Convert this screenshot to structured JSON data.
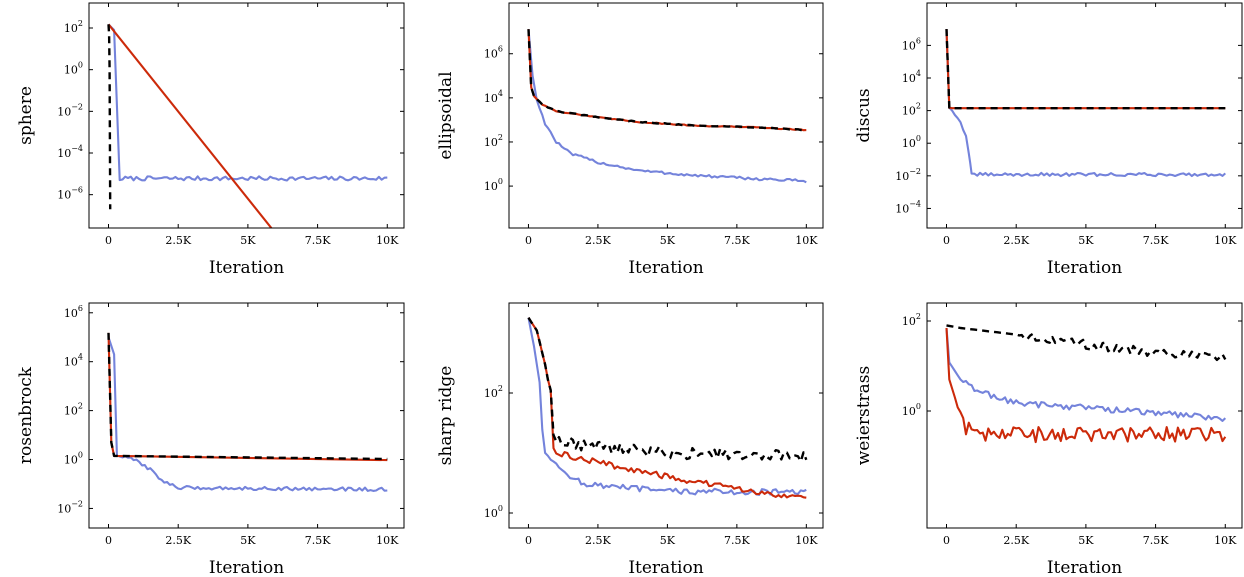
{
  "colors": {
    "blue": "#7483db",
    "red": "#cc2a0a",
    "black": "#000000"
  },
  "chart_data": [
    {
      "type": "line",
      "ylabel": "sphere",
      "xlabel": "Iteration",
      "xlim": [
        -700,
        10600
      ],
      "xticks": [
        0,
        2500,
        5000,
        7500,
        10000
      ],
      "xtick_labels": [
        "0",
        "2.5K",
        "5K",
        "7.5K",
        "10K"
      ],
      "yscale": "log",
      "ylim_exp": [
        -7.6,
        3.2
      ],
      "yticks_exp": [
        2,
        0,
        -2,
        -4,
        -6
      ],
      "series": [
        {
          "color": "blue",
          "style": "solid",
          "x": [
            0,
            200,
            400,
            500,
            10000
          ],
          "y": [
            150,
            80,
            5e-06,
            6e-06,
            6e-06
          ],
          "noise_log10": 0.1
        },
        {
          "color": "red",
          "style": "solid",
          "x": [
            0,
            5900
          ],
          "y": [
            150,
            2e-08
          ]
        },
        {
          "color": "black",
          "style": "dashed",
          "x": [
            0,
            20,
            40,
            60
          ],
          "y": [
            150,
            50,
            1,
            2e-07
          ]
        }
      ]
    },
    {
      "type": "line",
      "ylabel": "ellipsoidal",
      "xlabel": "Iteration",
      "xlim": [
        -700,
        10600
      ],
      "xticks": [
        0,
        2500,
        5000,
        7500,
        10000
      ],
      "xtick_labels": [
        "0",
        "2.5K",
        "5K",
        "7.5K",
        "10K"
      ],
      "yscale": "log",
      "ylim_exp": [
        -1.9,
        8.3
      ],
      "yticks_exp": [
        6,
        4,
        2,
        0
      ],
      "series": [
        {
          "color": "blue",
          "style": "solid",
          "x": [
            0,
            150,
            300,
            600,
            1000,
            1500,
            2500,
            4000,
            6000,
            8000,
            10000
          ],
          "y": [
            13000000.0,
            100000.0,
            8000,
            700,
            100,
            30,
            12,
            5,
            3,
            2.2,
            1.7
          ],
          "noise_log10": 0.06
        },
        {
          "color": "red",
          "style": "solid",
          "x": [
            0,
            100,
            200,
            500,
            1000,
            2500,
            4000,
            6000,
            8000,
            10000
          ],
          "y": [
            13000000.0,
            30000.0,
            12000.0,
            5000,
            2500,
            1300,
            800,
            550,
            470,
            350
          ],
          "noise_log10": 0.02
        },
        {
          "color": "black",
          "style": "dashed",
          "x": [
            0,
            100,
            200,
            500,
            1000,
            2500,
            4000,
            6000,
            8000,
            10000
          ],
          "y": [
            13000000.0,
            30000.0,
            12000.0,
            5000,
            2500,
            1300,
            800,
            550,
            470,
            350
          ],
          "noise_log10": 0.02
        }
      ]
    },
    {
      "type": "line",
      "ylabel": "discus",
      "xlabel": "Iteration",
      "xlim": [
        -700,
        10600
      ],
      "xticks": [
        0,
        2500,
        5000,
        7500,
        10000
      ],
      "xtick_labels": [
        "0",
        "2.5K",
        "5K",
        "7.5K",
        "10K"
      ],
      "yscale": "log",
      "ylim_exp": [
        -5.2,
        8.6
      ],
      "yticks_exp": [
        6,
        4,
        2,
        0,
        -2,
        -4
      ],
      "series": [
        {
          "color": "blue",
          "style": "solid",
          "x": [
            0,
            100,
            200,
            500,
            700,
            850,
            900,
            10000
          ],
          "y": [
            10000000.0,
            150,
            100,
            20,
            3,
            0.05,
            0.012,
            0.012
          ],
          "noise_log10": 0.1
        },
        {
          "color": "red",
          "style": "solid",
          "x": [
            0,
            100,
            200,
            10000
          ],
          "y": [
            10000000.0,
            150,
            140,
            140
          ]
        },
        {
          "color": "black",
          "style": "dashed",
          "x": [
            0,
            100,
            200,
            10000
          ],
          "y": [
            10000000.0,
            150,
            140,
            140
          ]
        }
      ]
    },
    {
      "type": "line",
      "ylabel": "rosenbrock",
      "xlabel": "Iteration",
      "xlim": [
        -700,
        10600
      ],
      "xticks": [
        0,
        2500,
        5000,
        7500,
        10000
      ],
      "xtick_labels": [
        "0",
        "2.5K",
        "5K",
        "7.5K",
        "10K"
      ],
      "yscale": "log",
      "ylim_exp": [
        -2.8,
        6.4
      ],
      "yticks_exp": [
        6,
        4,
        2,
        0,
        -2
      ],
      "series": [
        {
          "color": "blue",
          "style": "solid",
          "x": [
            0,
            200,
            300,
            400,
            600,
            1000,
            1500,
            2000,
            2500,
            10000
          ],
          "y": [
            100000.0,
            20000.0,
            1.5,
            1.4,
            1.2,
            0.9,
            0.4,
            0.12,
            0.07,
            0.06
          ],
          "noise_log10": 0.07
        },
        {
          "color": "red",
          "style": "solid",
          "x": [
            0,
            100,
            200,
            10000
          ],
          "y": [
            150000.0,
            5,
            1.4,
            0.95
          ]
        },
        {
          "color": "black",
          "style": "dashed",
          "x": [
            0,
            100,
            200,
            10000
          ],
          "y": [
            150000.0,
            5,
            1.4,
            1.05
          ]
        }
      ]
    },
    {
      "type": "line",
      "ylabel": "sharp ridge",
      "xlabel": "Iteration",
      "xlim": [
        -700,
        10600
      ],
      "xticks": [
        0,
        2500,
        5000,
        7500,
        10000
      ],
      "xtick_labels": [
        "0",
        "2.5K",
        "5K",
        "7.5K",
        "10K"
      ],
      "yscale": "log",
      "ylim_exp": [
        -0.25,
        3.5
      ],
      "yticks_exp": [
        2,
        0
      ],
      "series": [
        {
          "color": "blue",
          "style": "solid",
          "x": [
            0,
            200,
            400,
            500,
            600,
            1000,
            2000,
            5000,
            10000
          ],
          "y": [
            1800,
            600,
            150,
            25,
            11,
            6,
            3,
            2.3,
            2.2
          ],
          "noise_log10": 0.05
        },
        {
          "color": "red",
          "style": "solid",
          "x": [
            0,
            300,
            600,
            800,
            900,
            1000,
            2500,
            5000,
            7500,
            10000
          ],
          "y": [
            1800,
            1100,
            300,
            100,
            12,
            10,
            7,
            4,
            2.5,
            1.8
          ],
          "noise_log10": 0.05
        },
        {
          "color": "black",
          "style": "dashed",
          "x": [
            0,
            300,
            600,
            800,
            900,
            1000,
            5000,
            10000
          ],
          "y": [
            1800,
            1100,
            300,
            100,
            18,
            15,
            10,
            9
          ],
          "noise_log10": 0.1
        }
      ]
    },
    {
      "type": "line",
      "ylabel": "weierstrass",
      "xlabel": "Iteration",
      "xlim": [
        -700,
        10600
      ],
      "xticks": [
        0,
        2500,
        5000,
        7500,
        10000
      ],
      "xtick_labels": [
        "0",
        "2.5K",
        "5K",
        "7.5K",
        "10K"
      ],
      "yscale": "log",
      "ylim_exp": [
        -2.6,
        2.4
      ],
      "yticks_exp": [
        2,
        0
      ],
      "series": [
        {
          "color": "blue",
          "style": "solid",
          "x": [
            0,
            100,
            500,
            1000,
            2500,
            5000,
            7500,
            10000
          ],
          "y": [
            70,
            12,
            5,
            3,
            1.5,
            1.2,
            0.9,
            0.7
          ],
          "noise_log10": 0.07
        },
        {
          "color": "red",
          "style": "solid",
          "x": [
            0,
            100,
            300,
            600,
            1000,
            10000
          ],
          "y": [
            70,
            5,
            2,
            0.5,
            0.3,
            0.3
          ],
          "noise_log10": 0.17
        },
        {
          "color": "black",
          "style": "dashed",
          "x": [
            0,
            500,
            2500,
            5000,
            7500,
            10000
          ],
          "y": [
            80,
            70,
            50,
            30,
            20,
            15
          ],
          "noise_log10": 0.1
        }
      ]
    }
  ]
}
